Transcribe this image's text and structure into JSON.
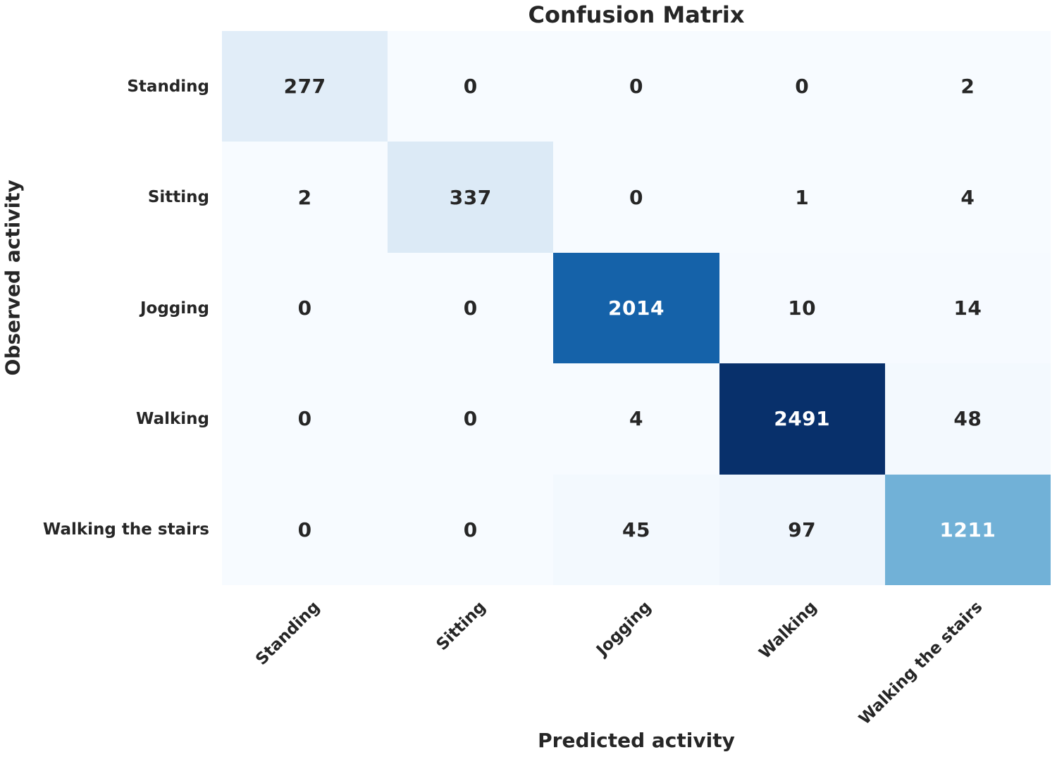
{
  "chart_data": {
    "type": "heatmap",
    "title": "Confusion Matrix",
    "xlabel": "Predicted activity",
    "ylabel": "Observed activity",
    "x_categories": [
      "Standing",
      "Sitting",
      "Jogging",
      "Walking",
      "Walking the stairs"
    ],
    "y_categories": [
      "Standing",
      "Sitting",
      "Jogging",
      "Walking",
      "Walking the stairs"
    ],
    "matrix": [
      [
        277,
        0,
        0,
        0,
        2
      ],
      [
        2,
        337,
        0,
        1,
        4
      ],
      [
        0,
        0,
        2014,
        10,
        14
      ],
      [
        0,
        0,
        4,
        2491,
        48
      ],
      [
        0,
        0,
        45,
        97,
        1211
      ]
    ],
    "colormap": "Blues",
    "vmin": 0,
    "vmax": 2491,
    "grid": false,
    "legend": "none",
    "colors": {
      "low": "#f7fbff",
      "high": "#08306b",
      "dark_text": "#262626",
      "light_text": "#ffffff"
    }
  }
}
